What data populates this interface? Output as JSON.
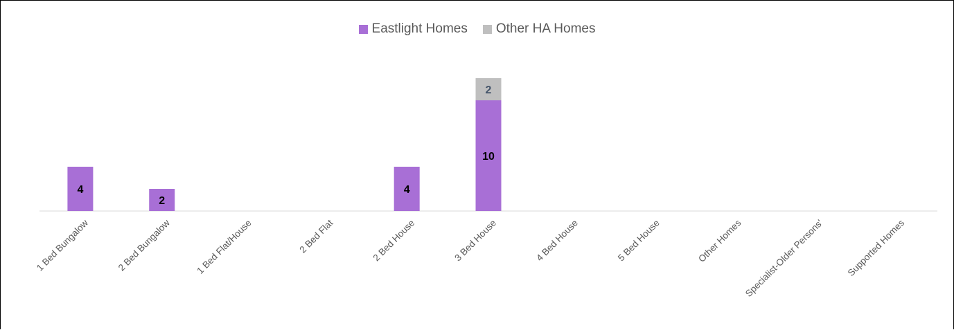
{
  "chart_data": {
    "type": "bar",
    "stacked": true,
    "categories": [
      "1 Bed Bungalow",
      "2 Bed Bungalow",
      "1 Bed Flat/House",
      "2 Bed Flat",
      "2 Bed House",
      "3 Bed House",
      "4 Bed House",
      "5 Bed House",
      "Other Homes",
      "Specialist-Older Persons'",
      "Supported Homes"
    ],
    "series": [
      {
        "name": "Eastlight Homes",
        "color": "#a86fd6",
        "label_color": "#000000",
        "values": [
          4,
          2,
          0,
          0,
          4,
          10,
          0,
          0,
          0,
          0,
          0
        ]
      },
      {
        "name": "Other HA Homes",
        "color": "#bfbfbf",
        "label_color": "#44546a",
        "values": [
          0,
          0,
          0,
          0,
          0,
          2,
          0,
          0,
          0,
          0,
          0
        ]
      }
    ],
    "ylim": [
      0,
      12
    ],
    "legend": "top-center",
    "grid": false,
    "xlabel": "",
    "ylabel": "",
    "title": ""
  }
}
